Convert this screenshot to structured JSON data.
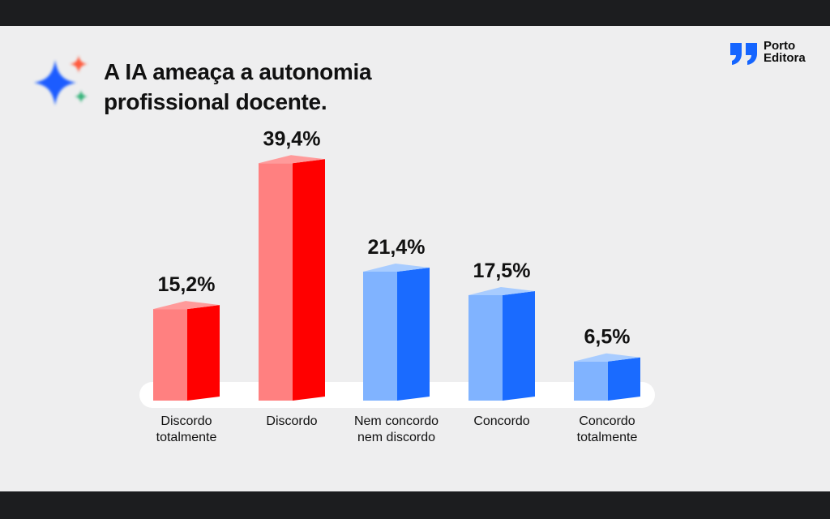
{
  "title": [
    "A IA ameaça a autonomia",
    "profissional docente."
  ],
  "logo": {
    "line1": "Porto",
    "line2": "Editora",
    "color": "#1565ff"
  },
  "icons": {
    "title_icon": "ai-sparkle-icon",
    "logo_icon": "porto-editora-quote-icon"
  },
  "colors": {
    "red_front": "#ff8080",
    "red_side": "#ff0000",
    "red_top": "#ff9a9a",
    "blue_front": "#80b3ff",
    "blue_side": "#1a6bff",
    "blue_top": "#a8ccff",
    "baseline": "#ffffff"
  },
  "chart_data": {
    "type": "bar",
    "title": "A IA ameaça a autonomia profissional docente.",
    "categories": [
      [
        "Discordo",
        "totalmente"
      ],
      [
        "Discordo"
      ],
      [
        "Nem concordo",
        "nem discordo"
      ],
      [
        "Concordo"
      ],
      [
        "Concordo",
        "totalmente"
      ]
    ],
    "values": [
      15.2,
      39.4,
      21.4,
      17.5,
      6.5
    ],
    "value_labels": [
      "15,2%",
      "39,4%",
      "21,4%",
      "17,5%",
      "6,5%"
    ],
    "bar_colors": [
      "red",
      "red",
      "blue",
      "blue",
      "blue"
    ],
    "ylim": [
      0,
      40
    ],
    "unit": "%",
    "grid": false,
    "legend": "none",
    "style": "3d-column"
  }
}
